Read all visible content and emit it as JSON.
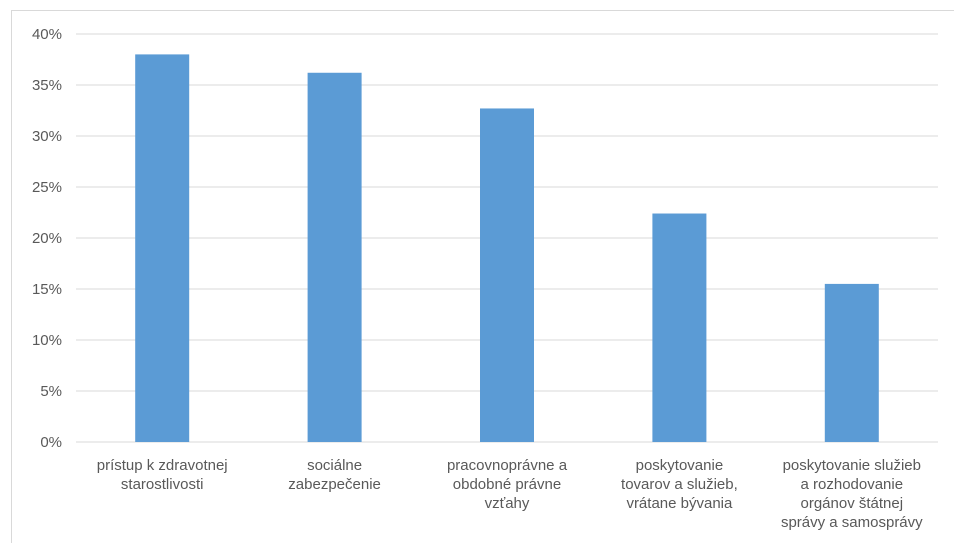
{
  "chart_data": {
    "type": "bar",
    "title": "",
    "xlabel": "",
    "ylabel": "",
    "ylim": [
      0,
      40
    ],
    "yticks": [
      "0%",
      "5%",
      "10%",
      "15%",
      "20%",
      "25%",
      "30%",
      "35%",
      "40%"
    ],
    "grid": true,
    "bar_color": "#5b9bd5",
    "categories": [
      [
        "prístup k zdravotnej",
        "starostlivosti"
      ],
      [
        "sociálne",
        "zabezpečenie"
      ],
      [
        "pracovnoprávne a",
        "obdobné právne",
        "vzťahy"
      ],
      [
        "poskytovanie",
        "tovarov a služieb,",
        "vrátane bývania"
      ],
      [
        "poskytovanie služieb",
        "a rozhodovanie",
        "orgánov štátnej",
        "správy a samosprávy"
      ]
    ],
    "values": [
      38.0,
      36.2,
      32.7,
      22.4,
      15.5
    ]
  }
}
